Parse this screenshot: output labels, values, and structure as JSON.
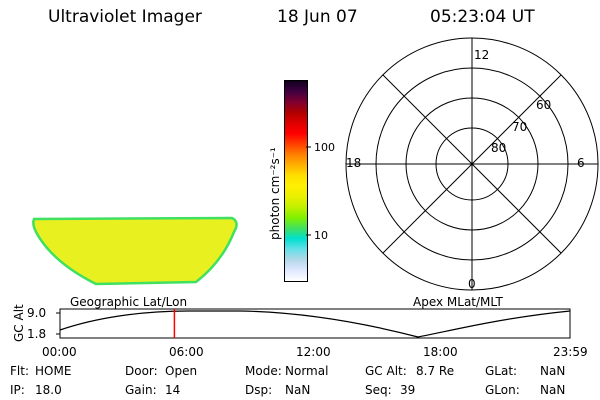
{
  "header": {
    "title": "Ultraviolet Imager",
    "date": "18 Jun 07",
    "time": "05:23:04 UT"
  },
  "colorbar": {
    "label": "photon cm⁻²s⁻¹",
    "ticks": [
      "100",
      "10"
    ],
    "scale": "log",
    "colors": [
      "#ffffff",
      "#e0e8ff",
      "#b4d8e8",
      "#66e0e8",
      "#00e0d0",
      "#40e060",
      "#80f000",
      "#c0f000",
      "#e8f000",
      "#fff000",
      "#ffe000",
      "#ffb000",
      "#ff8000",
      "#ff4000",
      "#ff0000",
      "#e00000",
      "#b00000",
      "#800030",
      "#400040",
      "#100020"
    ]
  },
  "polar_plot": {
    "labels": {
      "top": "12",
      "bottom": "0",
      "left": "18",
      "right": "6"
    },
    "rings": [
      "60",
      "70",
      "80"
    ],
    "caption": "Apex MLat/MLT"
  },
  "image_panel": {
    "caption": "Geographic Lat/Lon",
    "fill_color": "#e8f020",
    "edge_color": "#40e060"
  },
  "alt_plot": {
    "ylabel": "GC Alt",
    "yticks": [
      "9.0",
      "1.8"
    ],
    "xticks": [
      "00:00",
      "06:00",
      "12:00",
      "18:00",
      "23:59"
    ],
    "marker_color": "#ff0000",
    "marker_time_hours": 5.38
  },
  "status": {
    "flt_label": "Flt:",
    "flt_value": "HOME",
    "door_label": "Door:",
    "door_value": "Open",
    "mode_label": "Mode:",
    "mode_value": "Normal",
    "gcalt_label": "GC Alt:",
    "gcalt_value": "8.7 Re",
    "glat_label": "GLat:",
    "glat_value": "NaN",
    "ip_label": "IP:",
    "ip_value": "18.0",
    "gain_label": "Gain:",
    "gain_value": "14",
    "dsp_label": "Dsp:",
    "dsp_value": "NaN",
    "seq_label": "Seq:",
    "seq_value": "39",
    "glon_label": "GLon:",
    "glon_value": "NaN"
  }
}
